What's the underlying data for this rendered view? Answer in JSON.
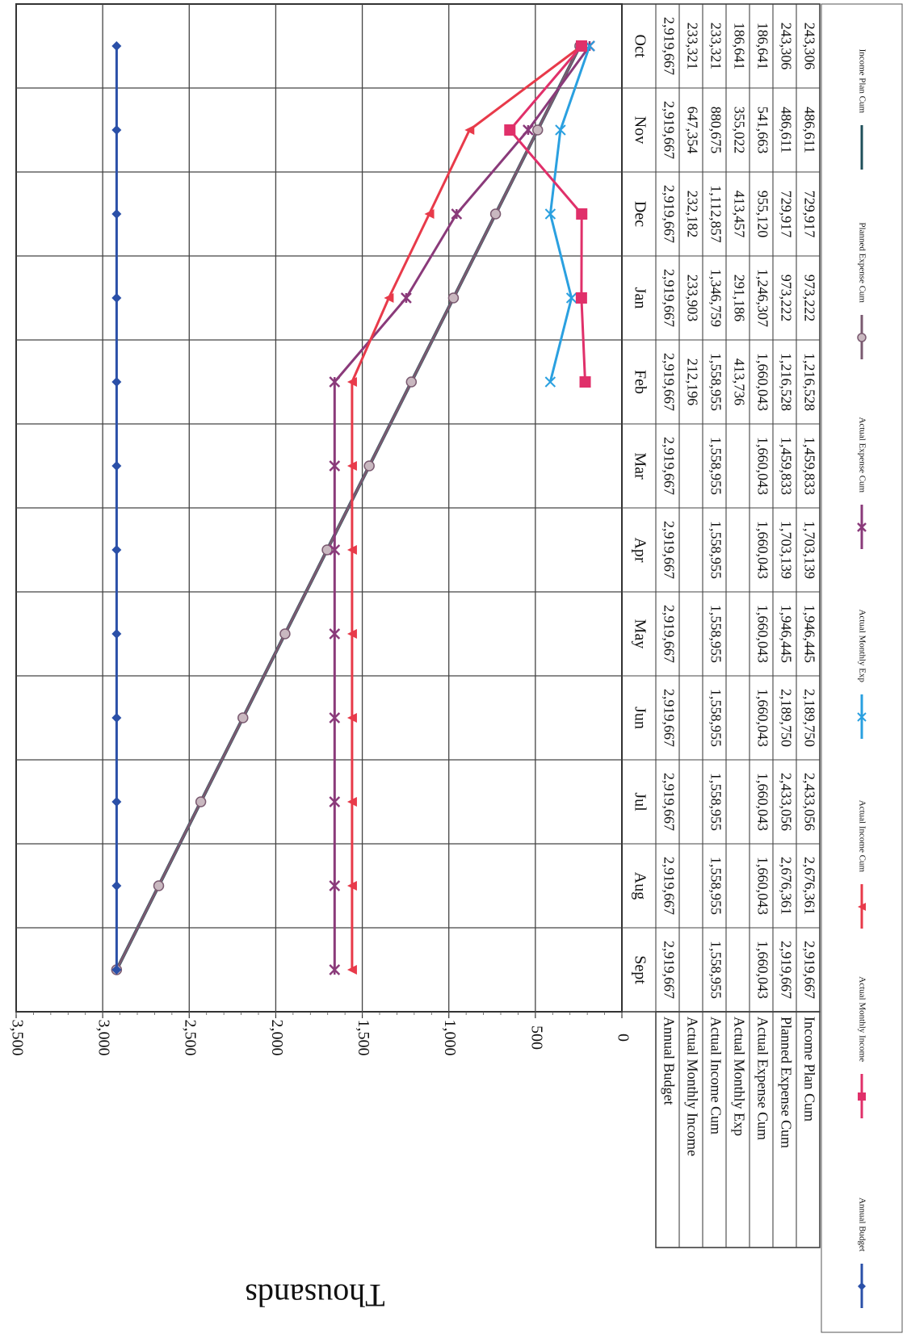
{
  "chart_data": {
    "type": "line",
    "ylabel": "Thousands",
    "ylim": [
      0,
      3500
    ],
    "yticks": [
      "0",
      "500",
      "1,000",
      "1,500",
      "2,000",
      "2,500",
      "3,000",
      "3,500"
    ],
    "grid": true,
    "orientation": "rotated-90-clockwise",
    "legend_position": "bottom",
    "categories": [
      "Oct",
      "Nov",
      "Dec",
      "Jan",
      "Feb",
      "Mar",
      "Apr",
      "May",
      "Jun",
      "Jul",
      "Aug",
      "Sept"
    ],
    "series": [
      {
        "name": "Annual Budget",
        "color": "#2b50a8",
        "marker": "diamond",
        "values": [
          2919.667,
          2919.667,
          2919.667,
          2919.667,
          2919.667,
          2919.667,
          2919.667,
          2919.667,
          2919.667,
          2919.667,
          2919.667,
          2919.667
        ],
        "table": [
          "2,919,667",
          "2,919,667",
          "2,919,667",
          "2,919,667",
          "2,919,667",
          "2,919,667",
          "2,919,667",
          "2,919,667",
          "2,919,667",
          "2,919,667",
          "2,919,667",
          "2,919,667"
        ]
      },
      {
        "name": "Actual Monthly Income",
        "color": "#e0306a",
        "marker": "square",
        "values": [
          233.321,
          647.354,
          232.182,
          233.903,
          212.196,
          null,
          null,
          null,
          null,
          null,
          null,
          null
        ],
        "table": [
          "233,321",
          "647,354",
          "232,182",
          "233,903",
          "212,196",
          "",
          "",
          "",
          "",
          "",
          "",
          ""
        ]
      },
      {
        "name": "Actual Income Cum",
        "color": "#e83a4a",
        "marker": "triangle",
        "values": [
          233.321,
          880.675,
          1112.857,
          1346.759,
          1558.955,
          1558.955,
          1558.955,
          1558.955,
          1558.955,
          1558.955,
          1558.955,
          1558.955
        ],
        "table": [
          "233,321",
          "880,675",
          "1,112,857",
          "1,346,759",
          "1,558,955",
          "1,558,955",
          "1,558,955",
          "1,558,955",
          "1,558,955",
          "1,558,955",
          "1,558,955",
          "1,558,955"
        ]
      },
      {
        "name": "Actual Monthly Exp",
        "color": "#2aa0e0",
        "marker": "x",
        "values": [
          186.641,
          355.022,
          413.457,
          291.186,
          413.736,
          null,
          null,
          null,
          null,
          null,
          null,
          null
        ],
        "table": [
          "186,641",
          "355,022",
          "413,457",
          "291,186",
          "413,736",
          "",
          "",
          "",
          "",
          "",
          "",
          ""
        ]
      },
      {
        "name": "Actual Expense Cum",
        "color": "#8a3a7a",
        "marker": "star",
        "values": [
          186.641,
          541.663,
          955.12,
          1246.307,
          1660.043,
          1660.043,
          1660.043,
          1660.043,
          1660.043,
          1660.043,
          1660.043,
          1660.043
        ],
        "table": [
          "186,641",
          "541,663",
          "955,120",
          "1,246,307",
          "1,660,043",
          "1,660,043",
          "1,660,043",
          "1,660,043",
          "1,660,043",
          "1,660,043",
          "1,660,043",
          "1,660,043"
        ]
      },
      {
        "name": "Planned Expense Cum",
        "color": "#7a5a70",
        "marker": "circle",
        "values": [
          243.306,
          486.611,
          729.917,
          973.222,
          1216.528,
          1459.833,
          1703.139,
          1946.445,
          2189.75,
          2433.056,
          2676.361,
          2919.667
        ],
        "table": [
          "243,306",
          "486,611",
          "729,917",
          "973,222",
          "1,216,528",
          "1,459,833",
          "1,703,139",
          "1,946,445",
          "2,189,750",
          "2,433,056",
          "2,676,361",
          "2,919,667"
        ]
      },
      {
        "name": "Income Plan Cum",
        "color": "#1f4f5a",
        "marker": "none",
        "values": [
          243.306,
          486.611,
          729.917,
          973.222,
          1216.528,
          1459.833,
          1703.139,
          1946.445,
          2189.75,
          2433.056,
          2676.361,
          2919.667
        ],
        "table": [
          "243,306",
          "486,611",
          "729,917",
          "973,222",
          "1,216,528",
          "1,459,833",
          "1,703,139",
          "1,946,445",
          "2,189,750",
          "2,433,056",
          "2,676,361",
          "2,919,667"
        ]
      }
    ]
  }
}
